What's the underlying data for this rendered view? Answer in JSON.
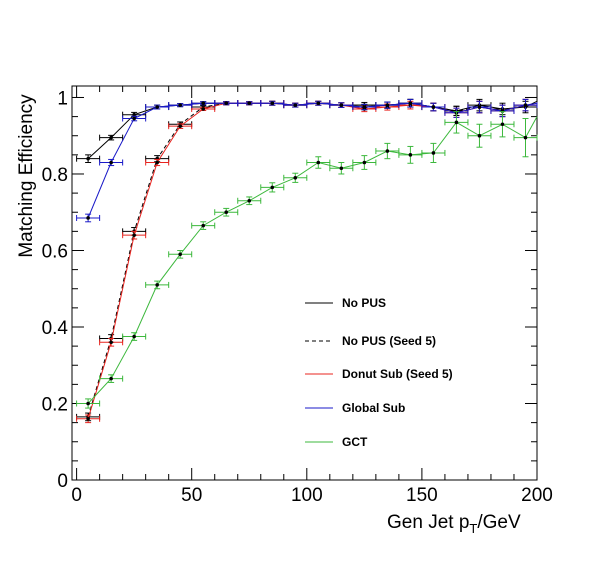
{
  "chart_data": {
    "type": "line",
    "xlabel_main": "Gen Jet p",
    "xlabel_sub": "T",
    "xlabel_tail": "/GeV",
    "ylabel": "Matching Efficiency",
    "xlim": [
      -2,
      200
    ],
    "ylim": [
      0,
      1.03
    ],
    "grid": false,
    "legend_position": "center-right",
    "x_ticks": [
      "0",
      "50",
      "100",
      "150",
      "200"
    ],
    "y_ticks": [
      "0",
      "0.2",
      "0.4",
      "0.6",
      "0.8",
      "1"
    ],
    "x_tick_values": [
      0,
      50,
      100,
      150,
      200
    ],
    "y_tick_values": [
      0,
      0.2,
      0.4,
      0.6,
      0.8,
      1.0
    ],
    "bin_half_width": 5,
    "series": [
      {
        "name": "No PUS",
        "color": "#000000",
        "dash": false,
        "x": [
          5,
          15,
          25,
          35,
          45,
          55,
          65,
          75,
          85,
          95,
          105,
          115,
          125,
          135,
          145,
          155,
          165,
          175,
          185,
          195,
          200
        ],
        "y": [
          0.84,
          0.895,
          0.955,
          0.975,
          0.98,
          0.985,
          0.985,
          0.985,
          0.985,
          0.98,
          0.985,
          0.98,
          0.98,
          0.98,
          0.985,
          0.975,
          0.965,
          0.98,
          0.97,
          0.975,
          0.99
        ],
        "err": [
          0.01,
          0.006,
          0.006,
          0.005,
          0.004,
          0.004,
          0.004,
          0.004,
          0.005,
          0.005,
          0.005,
          0.006,
          0.007,
          0.008,
          0.01,
          0.01,
          0.012,
          0.015,
          0.015,
          0.015,
          0.0
        ]
      },
      {
        "name": "No PUS (Seed 5)",
        "color": "#000000",
        "dash": true,
        "x": [
          5,
          15,
          25,
          35,
          45,
          55,
          65,
          75,
          85,
          95,
          105,
          115,
          125,
          135,
          145,
          155,
          165,
          175,
          185,
          195
        ],
        "y": [
          0.165,
          0.37,
          0.65,
          0.84,
          0.93,
          0.975,
          0.985,
          0.985,
          0.985,
          0.98,
          0.985,
          0.98,
          0.975,
          0.98,
          0.985,
          0.975,
          0.965,
          0.975,
          0.965,
          0.98
        ],
        "err": [
          0.01,
          0.01,
          0.01,
          0.008,
          0.006,
          0.004,
          0.004,
          0.004,
          0.005,
          0.005,
          0.005,
          0.006,
          0.007,
          0.008,
          0.01,
          0.01,
          0.012,
          0.015,
          0.015,
          0.015
        ]
      },
      {
        "name": "Donut Sub (Seed 5)",
        "color": "#e8241f",
        "dash": false,
        "x": [
          5,
          15,
          25,
          35,
          45,
          55,
          65,
          75,
          85,
          95,
          105,
          115,
          125,
          135,
          145,
          155,
          165,
          175,
          185,
          195
        ],
        "y": [
          0.16,
          0.36,
          0.64,
          0.83,
          0.925,
          0.97,
          0.985,
          0.985,
          0.985,
          0.98,
          0.985,
          0.98,
          0.97,
          0.975,
          0.98,
          0.975,
          0.96,
          0.975,
          0.965,
          0.98
        ],
        "err": [
          0.01,
          0.01,
          0.01,
          0.008,
          0.006,
          0.004,
          0.004,
          0.004,
          0.005,
          0.005,
          0.005,
          0.006,
          0.007,
          0.008,
          0.01,
          0.01,
          0.012,
          0.015,
          0.015,
          0.015
        ]
      },
      {
        "name": "Global Sub",
        "color": "#1a1ac8",
        "dash": false,
        "x": [
          5,
          15,
          25,
          35,
          45,
          55,
          65,
          75,
          85,
          95,
          105,
          115,
          125,
          135,
          145,
          155,
          165,
          175,
          185,
          195,
          200
        ],
        "y": [
          0.685,
          0.83,
          0.945,
          0.975,
          0.98,
          0.985,
          0.985,
          0.985,
          0.985,
          0.98,
          0.985,
          0.98,
          0.975,
          0.98,
          0.985,
          0.975,
          0.96,
          0.975,
          0.965,
          0.98,
          0.985
        ],
        "err": [
          0.01,
          0.008,
          0.006,
          0.005,
          0.004,
          0.004,
          0.004,
          0.004,
          0.005,
          0.005,
          0.005,
          0.006,
          0.007,
          0.008,
          0.01,
          0.01,
          0.012,
          0.015,
          0.015,
          0.015,
          0.0
        ]
      },
      {
        "name": "GCT",
        "color": "#3cb83c",
        "dash": false,
        "x": [
          5,
          15,
          25,
          35,
          45,
          55,
          65,
          75,
          85,
          95,
          105,
          115,
          125,
          135,
          145,
          155,
          165,
          175,
          185,
          195,
          200
        ],
        "y": [
          0.2,
          0.265,
          0.375,
          0.51,
          0.59,
          0.665,
          0.7,
          0.73,
          0.765,
          0.79,
          0.83,
          0.815,
          0.83,
          0.86,
          0.85,
          0.855,
          0.935,
          0.9,
          0.93,
          0.895,
          0.95
        ],
        "err": [
          0.012,
          0.01,
          0.01,
          0.01,
          0.01,
          0.01,
          0.01,
          0.01,
          0.012,
          0.012,
          0.015,
          0.015,
          0.018,
          0.02,
          0.022,
          0.025,
          0.028,
          0.03,
          0.033,
          0.05,
          0.0
        ]
      }
    ]
  }
}
